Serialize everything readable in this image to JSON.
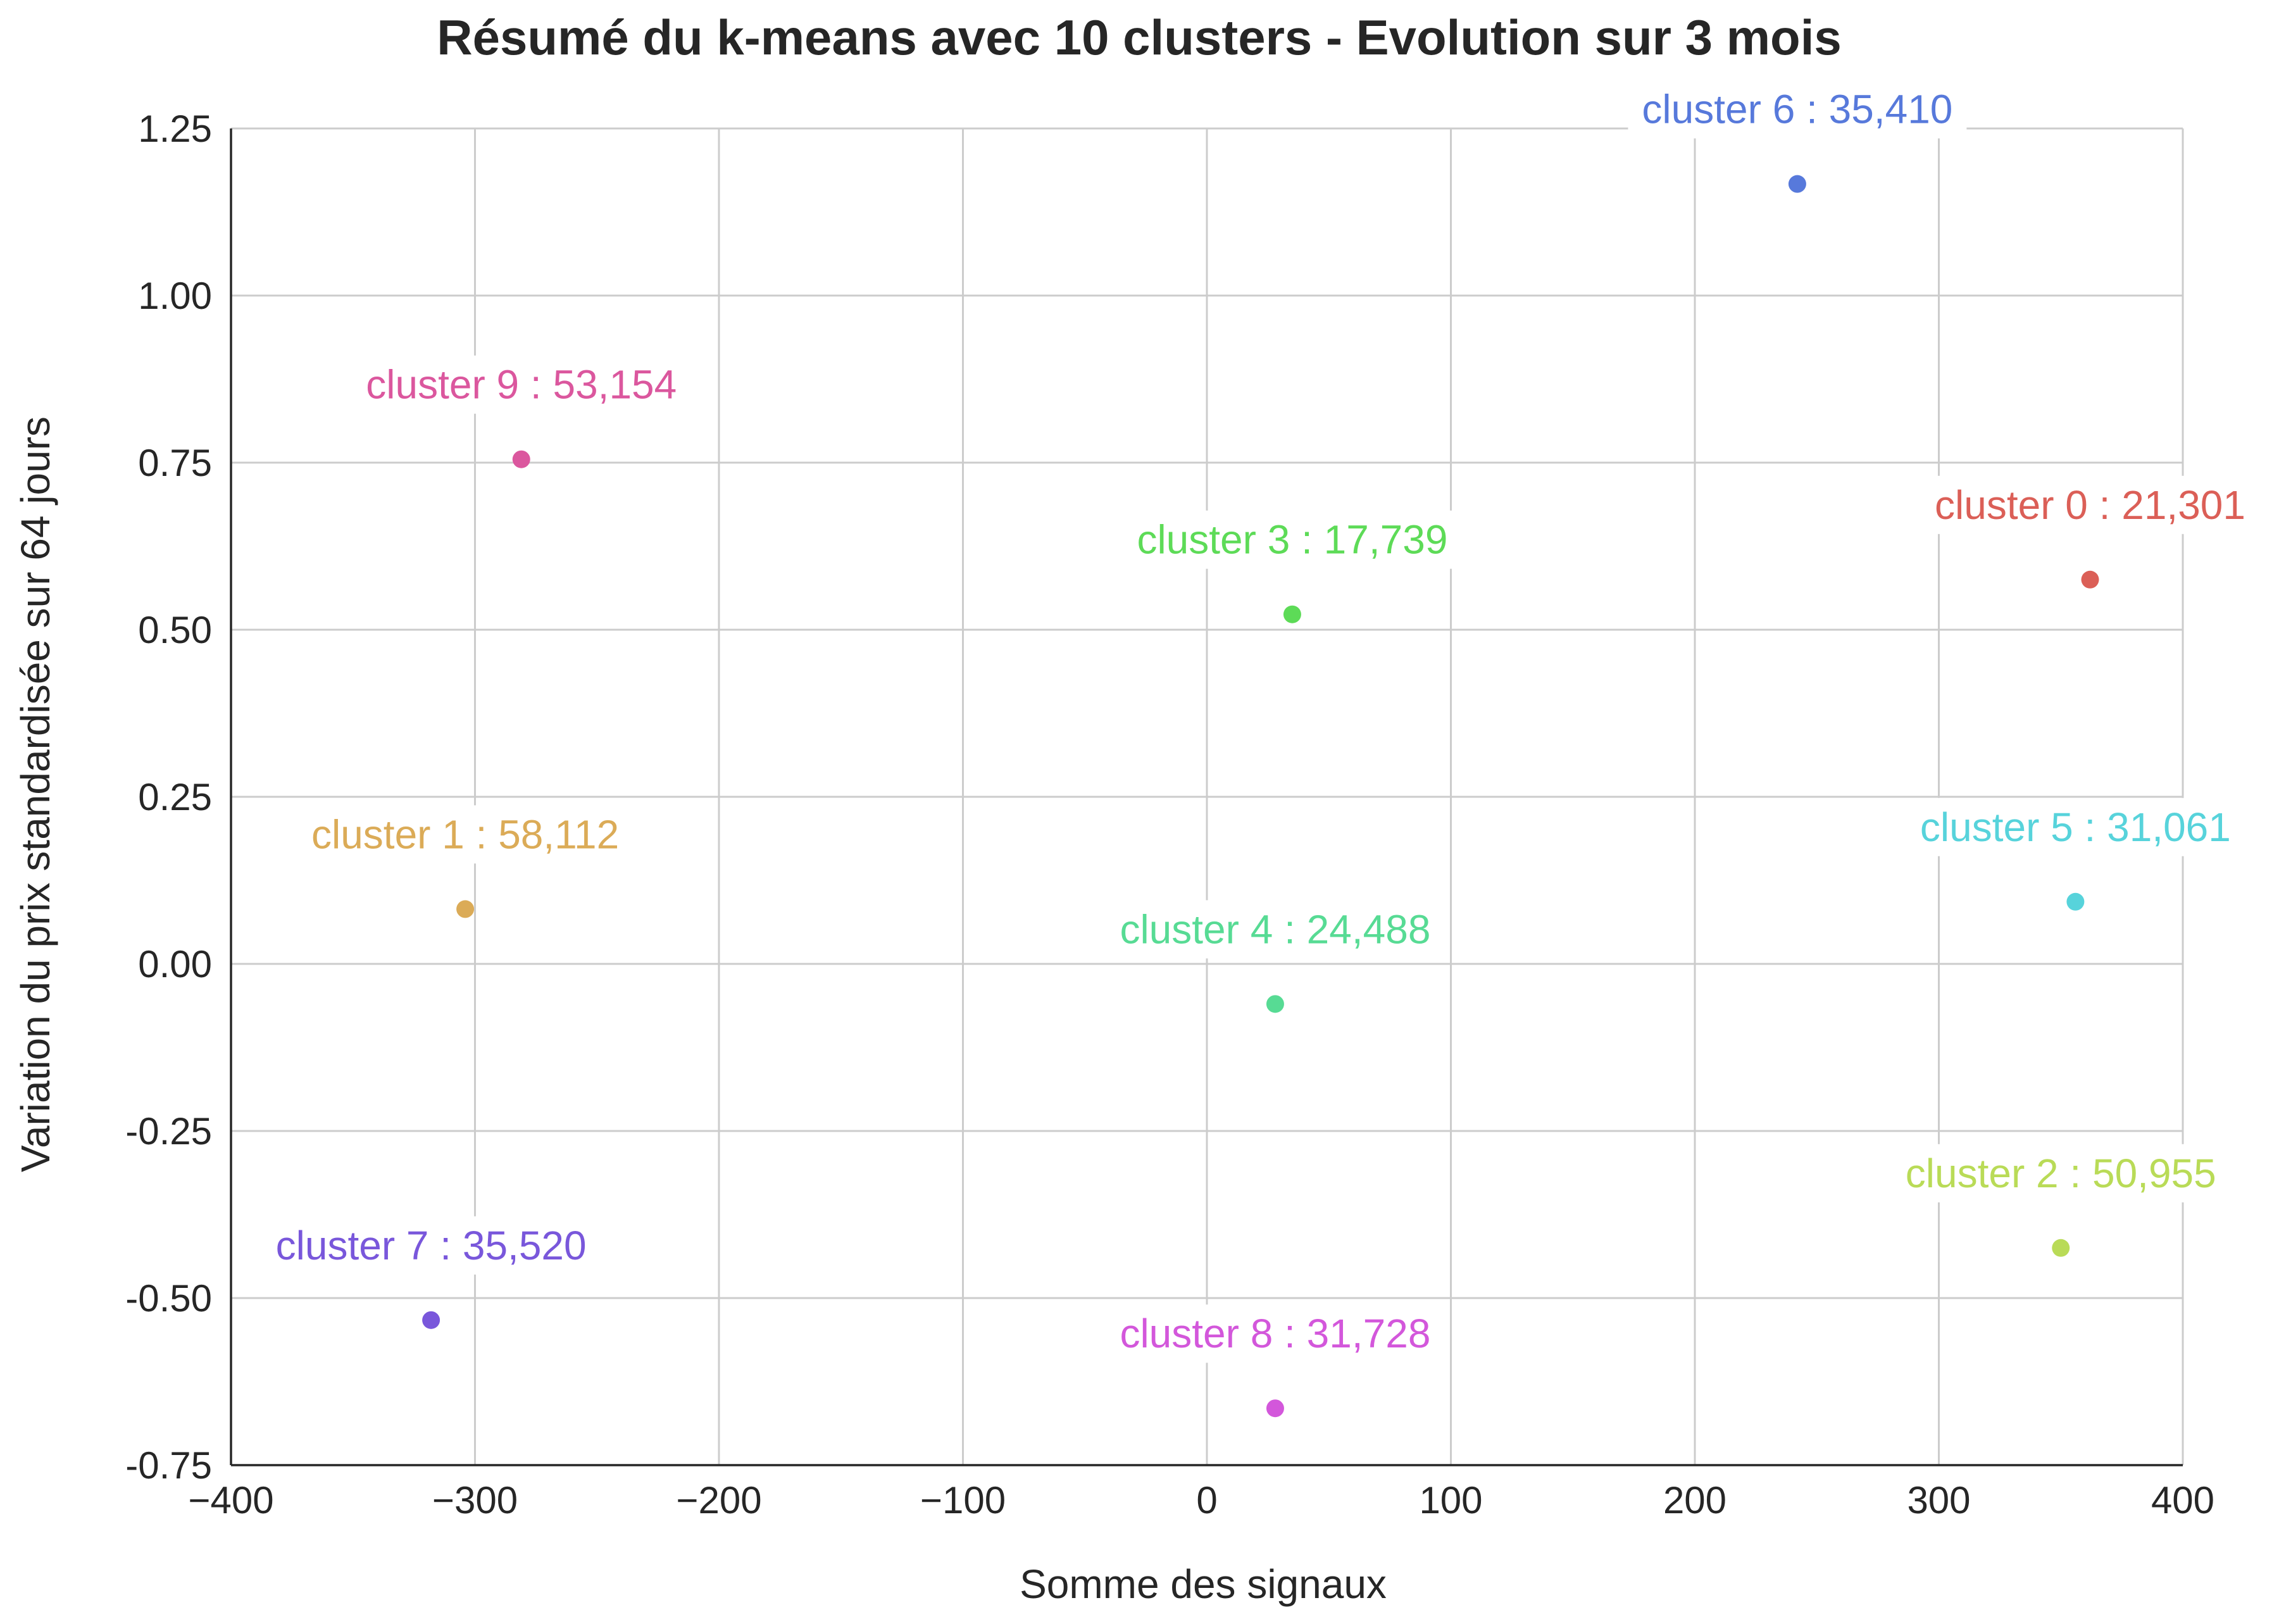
{
  "chart_data": {
    "type": "scatter",
    "title": "Résumé du k-means avec 10 clusters - Evolution sur 3 mois",
    "xlabel": "Somme des signaux",
    "ylabel": "Variation du prix standardisée sur 64 jours",
    "xlim": [
      -400,
      400
    ],
    "ylim": [
      -0.75,
      1.25
    ],
    "x_ticks": [
      -400,
      -300,
      -200,
      -100,
      0,
      100,
      200,
      300,
      400
    ],
    "x_tick_labels": [
      "−400",
      "−300",
      "−200",
      "−100",
      "0",
      "100",
      "200",
      "300",
      "400"
    ],
    "y_ticks": [
      1.25,
      1.0,
      0.75,
      0.5,
      0.25,
      0.0,
      -0.25,
      -0.5,
      -0.75
    ],
    "y_tick_labels": [
      "1.25",
      "1.00",
      "0.75",
      "0.50",
      "0.25",
      "0.00",
      "-0.25",
      "-0.50",
      "-0.75"
    ],
    "grid": true,
    "points": [
      {
        "label": "cluster 0 : 21,301",
        "x": 362,
        "y": 0.575,
        "color": "#db5f57"
      },
      {
        "label": "cluster 1 : 58,112",
        "x": -304,
        "y": 0.082,
        "color": "#dbab57"
      },
      {
        "label": "cluster 2 : 50,955",
        "x": 350,
        "y": -0.425,
        "color": "#b9db57"
      },
      {
        "label": "cluster 3 : 17,739",
        "x": 35,
        "y": 0.523,
        "color": "#5ddb57"
      },
      {
        "label": "cluster 4 : 24,488",
        "x": 28,
        "y": -0.06,
        "color": "#57db94"
      },
      {
        "label": "cluster 5 : 31,061",
        "x": 356,
        "y": 0.093,
        "color": "#57d3db"
      },
      {
        "label": "cluster 6 : 35,410",
        "x": 242,
        "y": 1.167,
        "color": "#5779db"
      },
      {
        "label": "cluster 7 : 35,520",
        "x": -318,
        "y": -0.533,
        "color": "#7957db"
      },
      {
        "label": "cluster 8 : 31,728",
        "x": 28,
        "y": -0.665,
        "color": "#d357db"
      },
      {
        "label": "cluster 9 : 53,154",
        "x": -281,
        "y": 0.755,
        "color": "#db579e"
      }
    ]
  }
}
